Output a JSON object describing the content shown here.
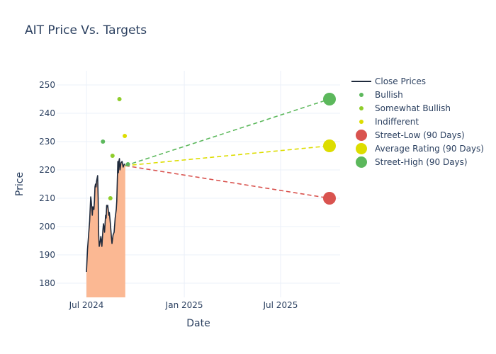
{
  "chart_data": {
    "type": "line",
    "title": "AIT Price Vs. Targets",
    "xlabel": "Date",
    "ylabel": "Price",
    "x_range": [
      "2024-05-06",
      "2025-10-21"
    ],
    "y_range": [
      175,
      255
    ],
    "x_ticks": [
      {
        "date": "2024-07-01",
        "label": "Jul 2024"
      },
      {
        "date": "2025-01-01",
        "label": "Jan 2025"
      },
      {
        "date": "2025-07-01",
        "label": "Jul 2025"
      }
    ],
    "y_ticks": [
      180,
      190,
      200,
      210,
      220,
      230,
      240,
      250
    ],
    "grid": true,
    "legend_position": "top-right",
    "close_prices": {
      "name": "Close Prices",
      "color": "#1f2a3c",
      "fill_color": "#fbb893",
      "points": [
        [
          "2024-07-01",
          184
        ],
        [
          "2024-07-03",
          192
        ],
        [
          "2024-07-05",
          197
        ],
        [
          "2024-07-07",
          202
        ],
        [
          "2024-07-09",
          210.5
        ],
        [
          "2024-07-10",
          209
        ],
        [
          "2024-07-12",
          204
        ],
        [
          "2024-07-13",
          207
        ],
        [
          "2024-07-15",
          206
        ],
        [
          "2024-07-16",
          209
        ],
        [
          "2024-07-17",
          214
        ],
        [
          "2024-07-18",
          215
        ],
        [
          "2024-07-19",
          214
        ],
        [
          "2024-07-20",
          216
        ],
        [
          "2024-07-22",
          218
        ],
        [
          "2024-07-23",
          210
        ],
        [
          "2024-07-24",
          197
        ],
        [
          "2024-07-25",
          193
        ],
        [
          "2024-07-27",
          195
        ],
        [
          "2024-07-28",
          196.5
        ],
        [
          "2024-07-30",
          193
        ],
        [
          "2024-08-01",
          199
        ],
        [
          "2024-08-02",
          201
        ],
        [
          "2024-08-04",
          198
        ],
        [
          "2024-08-06",
          204
        ],
        [
          "2024-08-07",
          203
        ],
        [
          "2024-08-08",
          207.5
        ],
        [
          "2024-08-09",
          207
        ],
        [
          "2024-08-10",
          207.5
        ],
        [
          "2024-08-12",
          204
        ],
        [
          "2024-08-13",
          205
        ],
        [
          "2024-08-15",
          201
        ],
        [
          "2024-08-17",
          196
        ],
        [
          "2024-08-18",
          194
        ],
        [
          "2024-08-20",
          197
        ],
        [
          "2024-08-22",
          198
        ],
        [
          "2024-08-24",
          203
        ],
        [
          "2024-08-26",
          206
        ],
        [
          "2024-08-27",
          209
        ],
        [
          "2024-08-28",
          216
        ],
        [
          "2024-08-29",
          223
        ],
        [
          "2024-08-30",
          219
        ],
        [
          "2024-08-31",
          223
        ],
        [
          "2024-09-01",
          224
        ],
        [
          "2024-09-02",
          220
        ],
        [
          "2024-09-04",
          222.5
        ],
        [
          "2024-09-06",
          223
        ],
        [
          "2024-09-08",
          221
        ],
        [
          "2024-09-10",
          222
        ],
        [
          "2024-09-12",
          222
        ]
      ]
    },
    "analyst_ratings": [
      {
        "name": "Bullish",
        "color": "#5cb85c",
        "points": [
          [
            "2024-08-01",
            230
          ],
          [
            "2024-09-17",
            222
          ]
        ]
      },
      {
        "name": "Somewhat Bullish",
        "color": "#8fcd2b",
        "points": [
          [
            "2024-08-15",
            210
          ],
          [
            "2024-08-19",
            225
          ],
          [
            "2024-09-01",
            245
          ]
        ]
      },
      {
        "name": "Indifferent",
        "color": "#dddd00",
        "points": [
          [
            "2024-09-11",
            232
          ]
        ]
      }
    ],
    "targets": {
      "start": [
        "2024-09-12",
        221.5
      ],
      "end_date": "2025-10-01",
      "items": [
        {
          "name": "Street-Low (90 Days)",
          "value": 210,
          "color": "#d9534f"
        },
        {
          "name": "Average Rating (90 Days)",
          "value": 228.5,
          "color": "#dddd00"
        },
        {
          "name": "Street-High (90 Days)",
          "value": 245,
          "color": "#5cb85c"
        }
      ]
    }
  }
}
